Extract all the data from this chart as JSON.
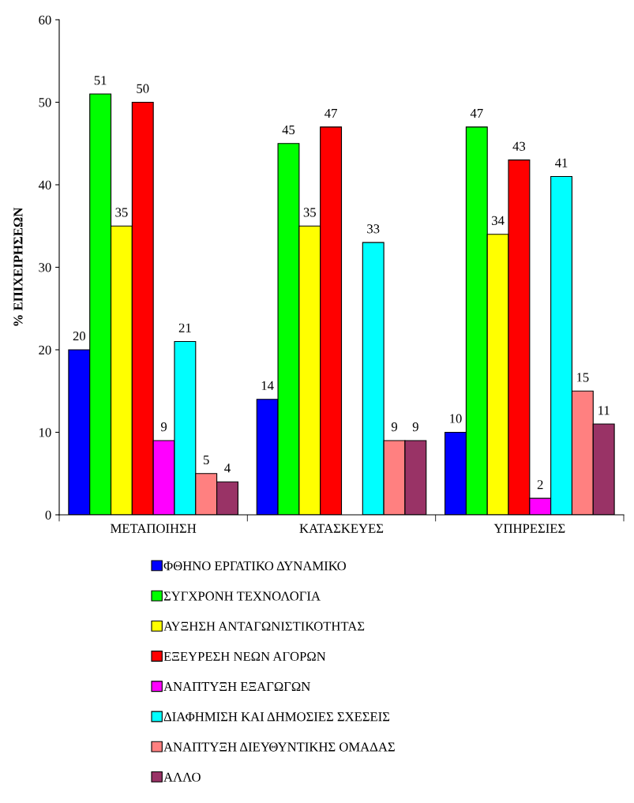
{
  "chart_data": {
    "type": "bar",
    "ylabel": "% ΕΠΙΧΕΙΡΗΣΕΩΝ",
    "categories": [
      "ΜΕΤΑΠΟΙΗΣΗ",
      "ΚΑΤΑΣΚΕΥΕΣ",
      "ΥΠΗΡΕΣΙΕΣ"
    ],
    "series": [
      {
        "name": "ΦΘΗΝΟ ΕΡΓΑΤΙΚΟ ΔΥΝΑΜΙΚΟ",
        "color": "#0000ff",
        "values": [
          20,
          14,
          10
        ]
      },
      {
        "name": "ΣΥΓΧΡΟΝΗ ΤΕΧΝΟΛΟΓΙΑ",
        "color": "#00ff00",
        "values": [
          51,
          45,
          47
        ]
      },
      {
        "name": "ΑΥΞΗΣΗ ΑΝΤΑΓΩΝΙΣΤΙΚΟΤΗΤΑΣ",
        "color": "#ffff00",
        "values": [
          35,
          35,
          34
        ]
      },
      {
        "name": "ΕΞΕΥΡΕΣΗ ΝΕΩΝ ΑΓΟΡΩΝ",
        "color": "#ff0000",
        "values": [
          50,
          47,
          43
        ]
      },
      {
        "name": "ΑΝΑΠΤΥΞΗ ΕΞΑΓΩΓΩΝ",
        "color": "#ff00ff",
        "values": [
          9,
          null,
          2
        ]
      },
      {
        "name": "ΔΙΑΦΗΜΙΣΗ ΚΑΙ ΔΗΜΟΣΙΕΣ ΣΧΕΣΕΙΣ",
        "color": "#00ffff",
        "values": [
          21,
          33,
          41
        ]
      },
      {
        "name": "ΑΝΑΠΤΥΞΗ ΔΙΕΥΘΥΝΤΙΚΗΣ ΟΜΑΔΑΣ",
        "color": "#ff8080",
        "values": [
          5,
          9,
          15
        ]
      },
      {
        "name": "ΑΛΛΟ",
        "color": "#993366",
        "values": [
          4,
          9,
          11
        ]
      }
    ],
    "ylim": [
      0,
      60
    ],
    "yticks": [
      0,
      10,
      20,
      30,
      40,
      50,
      60
    ],
    "data_labels": true,
    "grid": false,
    "legend": "bottom"
  }
}
